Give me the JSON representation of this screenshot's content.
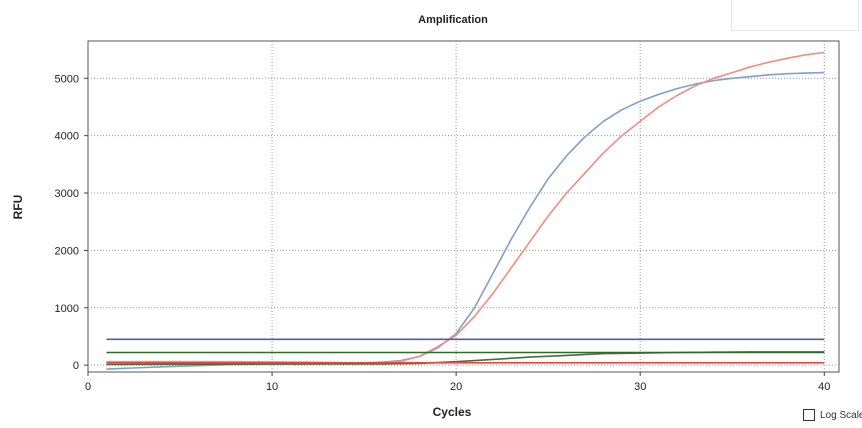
{
  "chart_data": {
    "type": "line",
    "title": "Amplification",
    "xlabel": "Cycles",
    "ylabel": "RFU",
    "xlim": [
      0,
      40.8
    ],
    "ylim": [
      -120,
      5650
    ],
    "xticks": [
      0,
      10,
      20,
      30,
      40
    ],
    "yticks": [
      0,
      1000,
      2000,
      3000,
      4000,
      5000
    ],
    "x_tick_labels": [
      "0",
      "10",
      "20",
      "30",
      "40"
    ],
    "y_tick_labels": [
      "0",
      "1000",
      "2000",
      "3000",
      "4000",
      "5000"
    ],
    "grid": "dotted",
    "series": [
      {
        "color": "#7e9fd0",
        "x": [
          1,
          4,
          8,
          12,
          14,
          16,
          17,
          18,
          19,
          20,
          21,
          22,
          23,
          24,
          25,
          26,
          27,
          28,
          29,
          30,
          31,
          32,
          33,
          34,
          35,
          36,
          37,
          38,
          39,
          40
        ],
        "y": [
          -70,
          -30,
          10,
          20,
          30,
          50,
          80,
          150,
          300,
          550,
          1000,
          1600,
          2200,
          2750,
          3250,
          3650,
          3980,
          4250,
          4450,
          4600,
          4720,
          4820,
          4900,
          4960,
          5000,
          5030,
          5060,
          5080,
          5090,
          5100
        ]
      },
      {
        "color": "#f28c7e",
        "x": [
          1,
          4,
          8,
          12,
          14,
          16,
          17,
          18,
          19,
          20,
          21,
          22,
          23,
          24,
          25,
          26,
          27,
          28,
          29,
          30,
          31,
          32,
          33,
          34,
          35,
          36,
          37,
          38,
          39,
          40
        ],
        "y": [
          60,
          60,
          60,
          50,
          40,
          40,
          70,
          150,
          320,
          520,
          850,
          1250,
          1700,
          2150,
          2600,
          3000,
          3350,
          3700,
          4000,
          4250,
          4500,
          4700,
          4870,
          5000,
          5100,
          5200,
          5280,
          5350,
          5410,
          5450
        ]
      },
      {
        "color": "#4a6c3a",
        "x": [
          1,
          10,
          16,
          18,
          20,
          22,
          24,
          26,
          28,
          30,
          32,
          34,
          36,
          38,
          40
        ],
        "y": [
          10,
          20,
          20,
          30,
          60,
          100,
          140,
          170,
          200,
          210,
          220,
          225,
          230,
          230,
          230
        ]
      },
      {
        "color": "#4d5fa8",
        "x": [
          1,
          40
        ],
        "y": [
          450,
          450
        ]
      },
      {
        "color": "#2e6a2e",
        "x": [
          1,
          40
        ],
        "y": [
          220,
          220
        ]
      },
      {
        "color": "#e8473f",
        "x": [
          1,
          40
        ],
        "y": [
          40,
          40
        ]
      }
    ]
  },
  "controls": {
    "log_scale_label": "Log Scale"
  }
}
